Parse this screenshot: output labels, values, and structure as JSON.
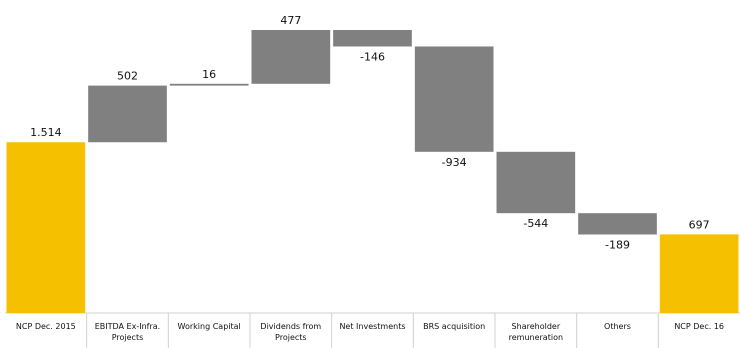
{
  "chart_data": {
    "type": "waterfall",
    "categories": [
      "NCP Dec. 2015",
      "EBITDA  Ex-Infra. Projects",
      "Working Capital",
      "Dividends from Projects",
      "Net Investments",
      "BRS acquisition",
      "Shareholder remuneration",
      "Others",
      "NCP Dec. 16"
    ],
    "values": [
      1514,
      502,
      16,
      477,
      -146,
      -934,
      -544,
      -189,
      697
    ],
    "value_labels": [
      "1.514",
      "502",
      "16",
      "477",
      "-146",
      "-934",
      "-544",
      "-189",
      "697"
    ],
    "color": "#808080",
    "total_color": "#f5c000"
  }
}
